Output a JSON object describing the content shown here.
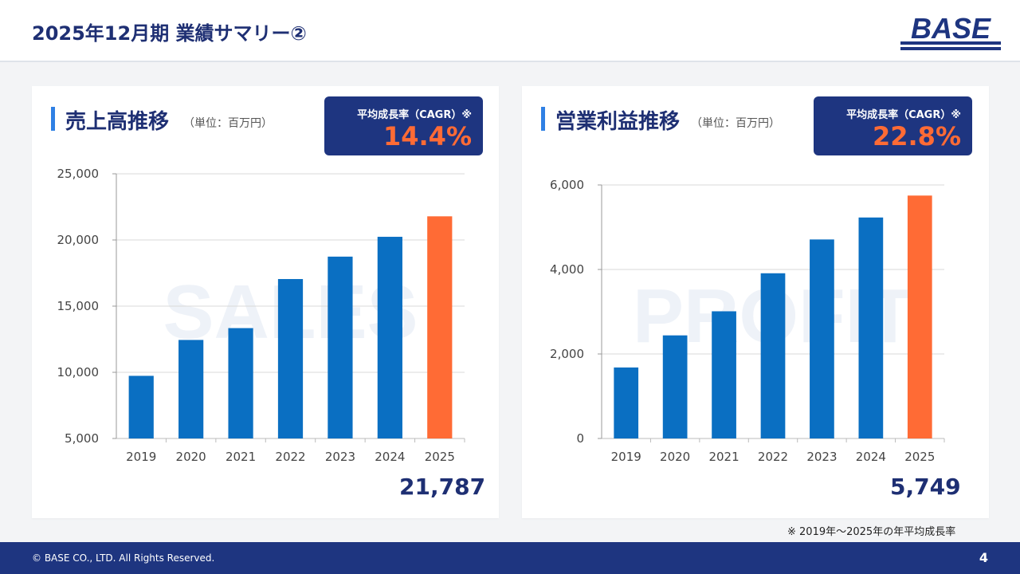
{
  "header": {
    "title": "2025年12月期 業績サマリー②",
    "logo_text": "BASE"
  },
  "colors": {
    "navy": "#1e3580",
    "bar_blue": "#0a6fc2",
    "bar_orange": "#ff6b35",
    "accent_blue": "#2f80e4"
  },
  "sales": {
    "title": "売上高推移",
    "unit": "（単位：百万円）",
    "cagr_label": "平均成長率（CAGR）※",
    "cagr_value": "14.4%",
    "final_value": "21,787",
    "watermark": "SALES"
  },
  "profit": {
    "title": "営業利益推移",
    "unit": "（単位：百万円）",
    "cagr_label": "平均成長率（CAGR）※",
    "cagr_value": "22.8%",
    "final_value": "5,749",
    "watermark": "PROFIT"
  },
  "chart_data": [
    {
      "type": "bar",
      "categories": [
        "2019",
        "2020",
        "2021",
        "2022",
        "2023",
        "2024",
        "2025"
      ],
      "values": [
        9733,
        12446,
        13340,
        17047,
        18741,
        20239,
        21787
      ],
      "highlight_last": true,
      "ylim": [
        5000,
        25000
      ],
      "yticks": [
        5000,
        10000,
        15000,
        20000,
        25000
      ],
      "ytick_labels": [
        "5,000",
        "10,000",
        "15,000",
        "20,000",
        "25,000"
      ],
      "grid": true
    },
    {
      "type": "bar",
      "categories": [
        "2019",
        "2020",
        "2021",
        "2022",
        "2023",
        "2024",
        "2025"
      ],
      "values": [
        1680,
        2440,
        3010,
        3910,
        4710,
        5230,
        5749
      ],
      "highlight_last": true,
      "ylim": [
        0,
        6000
      ],
      "yticks": [
        0,
        2000,
        4000,
        6000
      ],
      "ytick_labels": [
        "0",
        "2,000",
        "4,000",
        "6,000"
      ],
      "grid": true
    }
  ],
  "footnote": "※ 2019年～2025年の年平均成長率",
  "footer": {
    "copyright": "© BASE CO., LTD. All Rights Reserved.",
    "page_number": "4"
  }
}
